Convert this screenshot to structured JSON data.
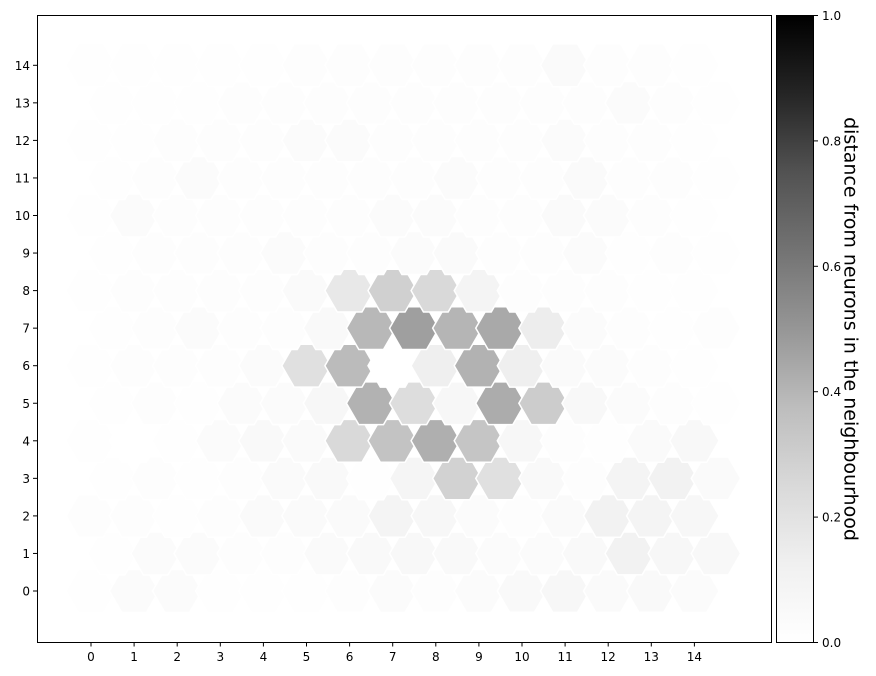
{
  "chart_data": {
    "type": "heatmap",
    "title": "",
    "xlabel": "",
    "ylabel": "",
    "grid_shape": "hexagonal",
    "xticks": [
      "0",
      "1",
      "2",
      "3",
      "4",
      "5",
      "6",
      "7",
      "8",
      "9",
      "10",
      "11",
      "12",
      "13",
      "14"
    ],
    "yticks": [
      "0",
      "1",
      "2",
      "3",
      "4",
      "5",
      "6",
      "7",
      "8",
      "9",
      "10",
      "11",
      "12",
      "13",
      "14"
    ],
    "colormap": "Greys",
    "colorbar": {
      "label": "distance from neurons in the neighbourhood",
      "range": [
        0.0,
        1.0
      ],
      "ticks": [
        "0.0",
        "0.2",
        "0.4",
        "0.6",
        "0.8",
        "1.0"
      ]
    },
    "values": [
      [
        0.01,
        0.03,
        0.03,
        0.01,
        0.01,
        0.01,
        0.02,
        0.03,
        0.02,
        0.03,
        0.05,
        0.07,
        0.04,
        0.05,
        0.03
      ],
      [
        0.01,
        0.03,
        0.03,
        0.02,
        0.02,
        0.04,
        0.05,
        0.06,
        0.05,
        0.03,
        0.03,
        0.05,
        0.11,
        0.07,
        0.06
      ],
      [
        0.02,
        0.02,
        0.01,
        0.02,
        0.04,
        0.04,
        0.04,
        0.09,
        0.07,
        0.03,
        0.02,
        0.04,
        0.11,
        0.09,
        0.07
      ],
      [
        0.01,
        0.02,
        0.01,
        0.02,
        0.04,
        0.05,
        0.01,
        0.08,
        0.28,
        0.21,
        0.05,
        0.02,
        0.09,
        0.11,
        0.04
      ],
      [
        0.01,
        0.0,
        0.01,
        0.03,
        0.05,
        0.04,
        0.25,
        0.35,
        0.42,
        0.34,
        0.07,
        0.02,
        0.01,
        0.04,
        0.06
      ],
      [
        0.01,
        0.02,
        0.01,
        0.03,
        0.03,
        0.07,
        0.41,
        0.23,
        0.07,
        0.43,
        0.31,
        0.06,
        0.03,
        0.02,
        0.01
      ],
      [
        0.01,
        0.02,
        0.02,
        0.02,
        0.03,
        0.21,
        0.38,
        0.0,
        0.13,
        0.41,
        0.13,
        0.04,
        0.03,
        0.02,
        0.01
      ],
      [
        0.01,
        0.02,
        0.03,
        0.02,
        0.02,
        0.05,
        0.39,
        0.47,
        0.4,
        0.44,
        0.14,
        0.03,
        0.02,
        0.01,
        0.02
      ],
      [
        0.01,
        0.02,
        0.02,
        0.02,
        0.02,
        0.04,
        0.17,
        0.29,
        0.25,
        0.09,
        0.02,
        0.02,
        0.02,
        0.01,
        0.01
      ],
      [
        0.01,
        0.02,
        0.02,
        0.02,
        0.03,
        0.02,
        0.02,
        0.03,
        0.04,
        0.02,
        0.02,
        0.03,
        0.01,
        0.02,
        0.01
      ],
      [
        0.01,
        0.03,
        0.02,
        0.02,
        0.02,
        0.02,
        0.02,
        0.03,
        0.03,
        0.02,
        0.02,
        0.04,
        0.03,
        0.02,
        0.01
      ],
      [
        0.01,
        0.02,
        0.03,
        0.02,
        0.02,
        0.02,
        0.02,
        0.02,
        0.03,
        0.02,
        0.02,
        0.04,
        0.02,
        0.02,
        0.01
      ],
      [
        0.01,
        0.01,
        0.02,
        0.02,
        0.02,
        0.03,
        0.03,
        0.02,
        0.02,
        0.02,
        0.02,
        0.03,
        0.02,
        0.02,
        0.01
      ],
      [
        0.01,
        0.01,
        0.01,
        0.02,
        0.02,
        0.02,
        0.02,
        0.02,
        0.02,
        0.02,
        0.02,
        0.02,
        0.03,
        0.02,
        0.01
      ],
      [
        0.01,
        0.01,
        0.01,
        0.01,
        0.01,
        0.02,
        0.02,
        0.02,
        0.02,
        0.02,
        0.02,
        0.04,
        0.02,
        0.02,
        0.01
      ]
    ]
  }
}
